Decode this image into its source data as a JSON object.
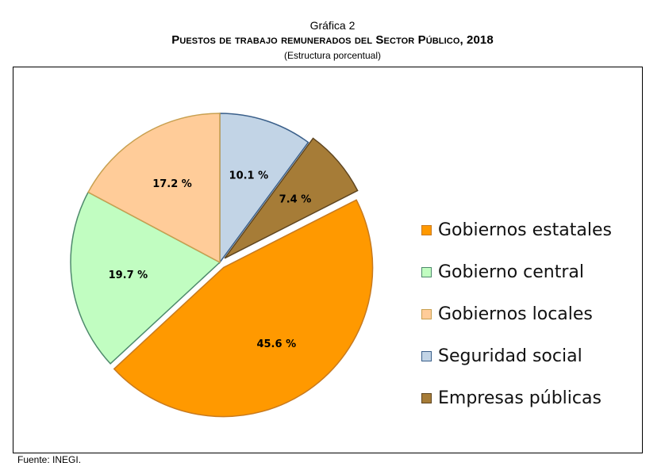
{
  "header": {
    "kicker": "Gráfica 2",
    "title": "Puestos de trabajo remunerados del Sector Público, 2018",
    "subtitle": "(Estructura porcentual)"
  },
  "footer": {
    "source": "Fuente: INEGI."
  },
  "chart_data": {
    "type": "pie",
    "title": "Puestos de trabajo remunerados del Sector Público, 2018",
    "subtitle": "(Estructura porcentual)",
    "unit": "%",
    "legend_position": "right",
    "slices": [
      {
        "name": "Gobiernos estatales",
        "value": 45.6,
        "label": "45.6 %",
        "color": "#FF9900",
        "stroke": "#C87A1E"
      },
      {
        "name": "Gobierno central",
        "value": 19.7,
        "label": "19.7 %",
        "color": "#C1FDC1",
        "stroke": "#4E8A6C"
      },
      {
        "name": "Gobiernos locales",
        "value": 17.2,
        "label": "17.2 %",
        "color": "#FFCC99",
        "stroke": "#C8A050"
      },
      {
        "name": "Seguridad social",
        "value": 10.1,
        "label": "10.1 %",
        "color": "#C2D4E6",
        "stroke": "#3A5F8A"
      },
      {
        "name": "Empresas públicas",
        "value": 7.4,
        "label": "7.4 %",
        "color": "#A67C37",
        "stroke": "#5E4520"
      }
    ]
  }
}
